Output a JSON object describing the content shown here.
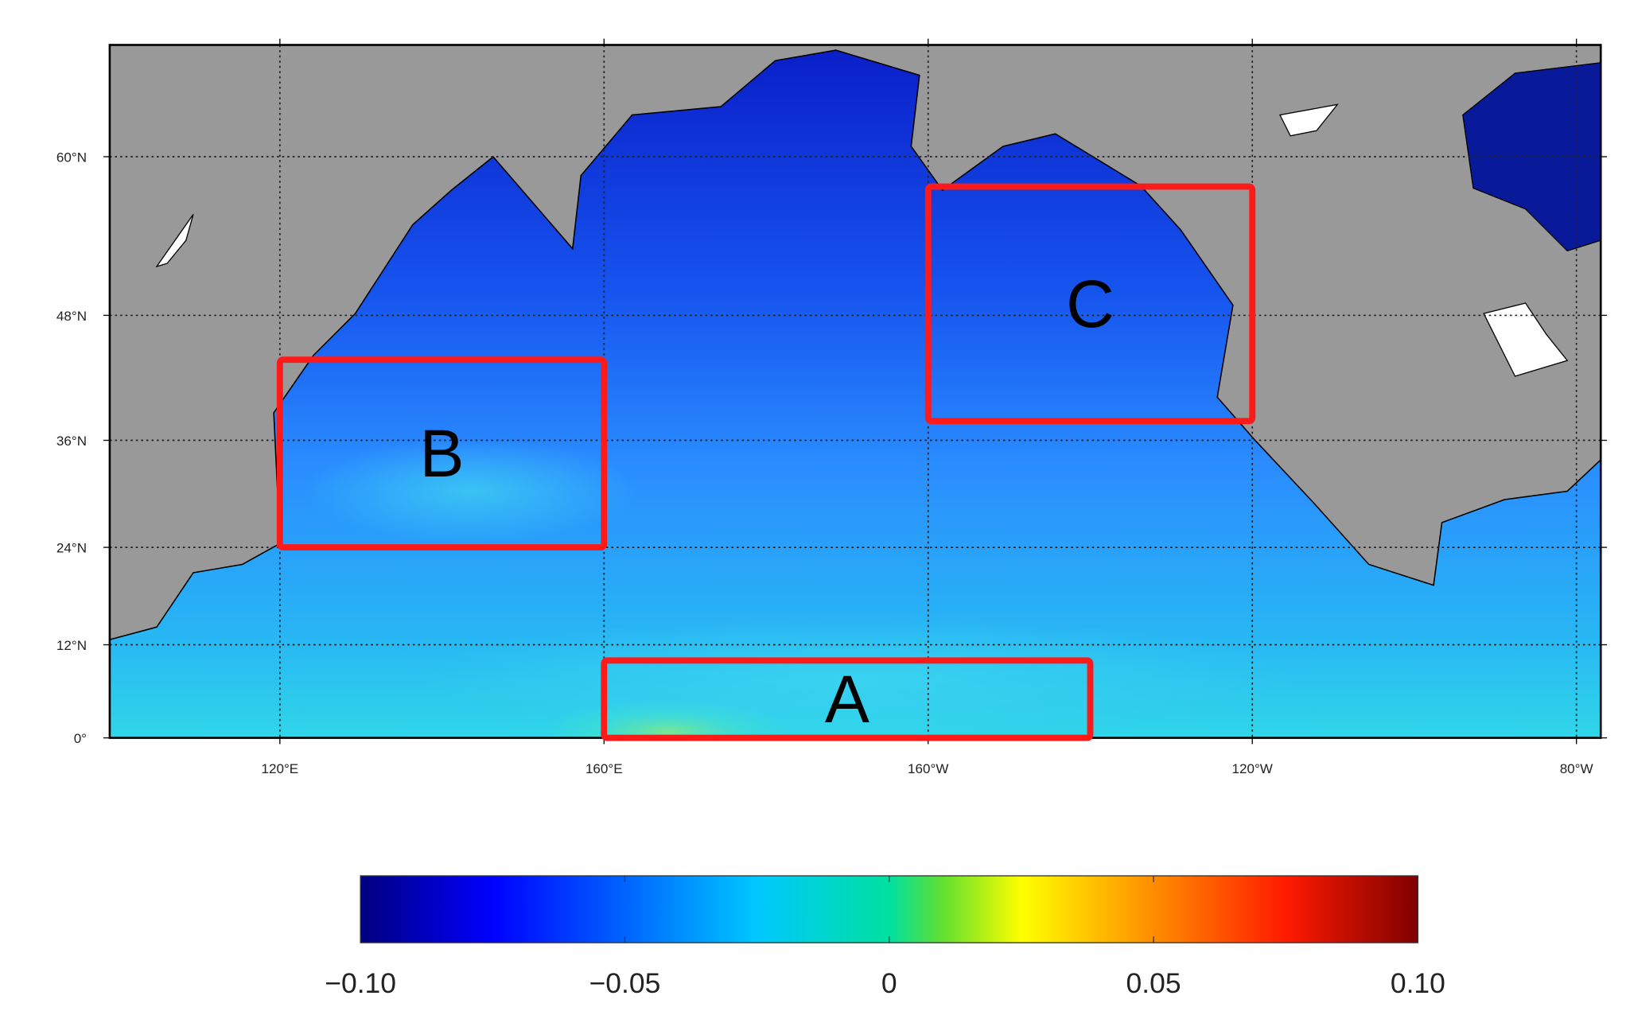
{
  "map": {
    "projection": "mercator",
    "xlim": [
      99,
      283
    ],
    "ylim": [
      0,
      66.5
    ],
    "grid": true,
    "xticks": [
      {
        "value": 120,
        "label": "120°E"
      },
      {
        "value": 160,
        "label": "160°E"
      },
      {
        "value": 200,
        "label": "160°W"
      },
      {
        "value": 240,
        "label": "120°W"
      },
      {
        "value": 280,
        "label": "80°W"
      }
    ],
    "yticks": [
      {
        "value": 0,
        "label": "0°"
      },
      {
        "value": 12,
        "label": "12°N"
      },
      {
        "value": 24,
        "label": "24°N"
      },
      {
        "value": 36,
        "label": "36°N"
      },
      {
        "value": 48,
        "label": "48°N"
      },
      {
        "value": 60,
        "label": "60°N"
      }
    ],
    "regions": [
      {
        "label": "A",
        "lon": [
          160,
          220
        ],
        "lat": [
          0,
          10
        ],
        "color": "#ff1a1a"
      },
      {
        "label": "B",
        "lon": [
          120,
          160
        ],
        "lat": [
          24,
          44
        ],
        "color": "#ff1a1a"
      },
      {
        "label": "C",
        "lon": [
          200,
          240
        ],
        "lat": [
          38,
          58
        ],
        "color": "#ff1a1a"
      }
    ],
    "colorbar": {
      "range": [
        -0.1,
        0.1
      ],
      "colormap": "jet",
      "ticks": [
        {
          "value": -0.1,
          "label": "−0.10"
        },
        {
          "value": -0.05,
          "label": "−0.05"
        },
        0,
        0.05,
        {
          "value": 0.1,
          "label": "0.10"
        }
      ]
    }
  }
}
